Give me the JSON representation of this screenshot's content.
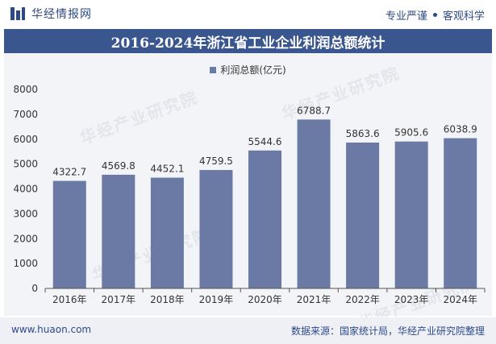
{
  "header": {
    "brand": "华经情报网",
    "slogan_left": "专业严谨",
    "slogan_right": "客观科学",
    "brand_color": "#2d4a86"
  },
  "watermark": "华经产业研究院",
  "footer": {
    "site": "www.huaon.com",
    "source": "数据来源：国家统计局，华经产业研究院整理"
  },
  "chart_data": {
    "type": "bar",
    "title": "2016-2024年浙江省工业企业利润总额统计",
    "categories": [
      "2016年",
      "2017年",
      "2018年",
      "2019年",
      "2020年",
      "2021年",
      "2022年",
      "2023年",
      "2024年"
    ],
    "series": [
      {
        "name": "利润总额(亿元)",
        "values": [
          4322.7,
          4569.8,
          4452.1,
          4759.5,
          5544.6,
          6788.7,
          5863.6,
          5905.6,
          6038.9
        ],
        "labels": [
          "4322.7",
          "4569.8",
          "4452.1",
          "4759.5",
          "5544.6",
          "6788.7",
          "5863.6",
          "5905.6",
          "6038.9"
        ],
        "color": "#6a7aa4"
      }
    ],
    "yticks": [
      "0",
      "1000",
      "2000",
      "3000",
      "4000",
      "5000",
      "6000",
      "7000",
      "8000"
    ],
    "ylim": [
      0,
      8000
    ],
    "legend_position": "top-center",
    "grid": false
  }
}
